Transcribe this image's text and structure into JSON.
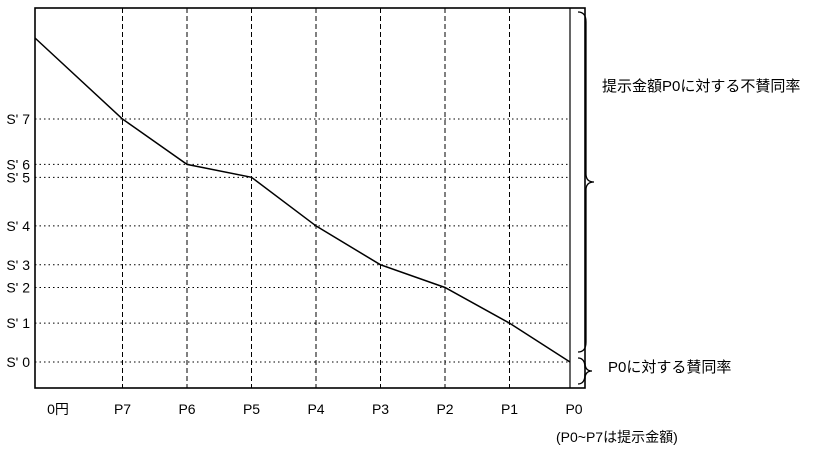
{
  "chart_data": {
    "type": "line",
    "x_categories": [
      "0円",
      "P7",
      "P6",
      "P5",
      "P4",
      "P3",
      "P2",
      "P1",
      "P0"
    ],
    "y_tick_labels": [
      "S' 0",
      "S' 1",
      "S' 2",
      "S' 3",
      "S' 4",
      "S' 5",
      "S' 6",
      "S' 7"
    ],
    "series": [
      {
        "points": [
          {
            "x": "0円",
            "y": 100
          },
          {
            "x": "P7",
            "y": "S' 7"
          },
          {
            "x": "P6",
            "y": "S' 6"
          },
          {
            "x": "P5",
            "y": "S' 5"
          },
          {
            "x": "P4",
            "y": "S' 4"
          },
          {
            "x": "P3",
            "y": "S' 3"
          },
          {
            "x": "P2",
            "y": "S' 2"
          },
          {
            "x": "P1",
            "y": "S' 1"
          },
          {
            "x": "P0",
            "y": "S' 0"
          }
        ]
      }
    ],
    "y_values": {
      "S' 0": 0,
      "S' 1": 12,
      "S' 2": 23,
      "S' 3": 30,
      "S' 4": 42,
      "S' 5": 57,
      "S' 6": 61,
      "S' 7": 75
    },
    "annotations": {
      "disagree_label": "提示金額P0に対する不賛同率",
      "agree_label": "P0に対する賛同率",
      "footnote": "(P0~P7は提示金額)"
    },
    "grid": true
  }
}
